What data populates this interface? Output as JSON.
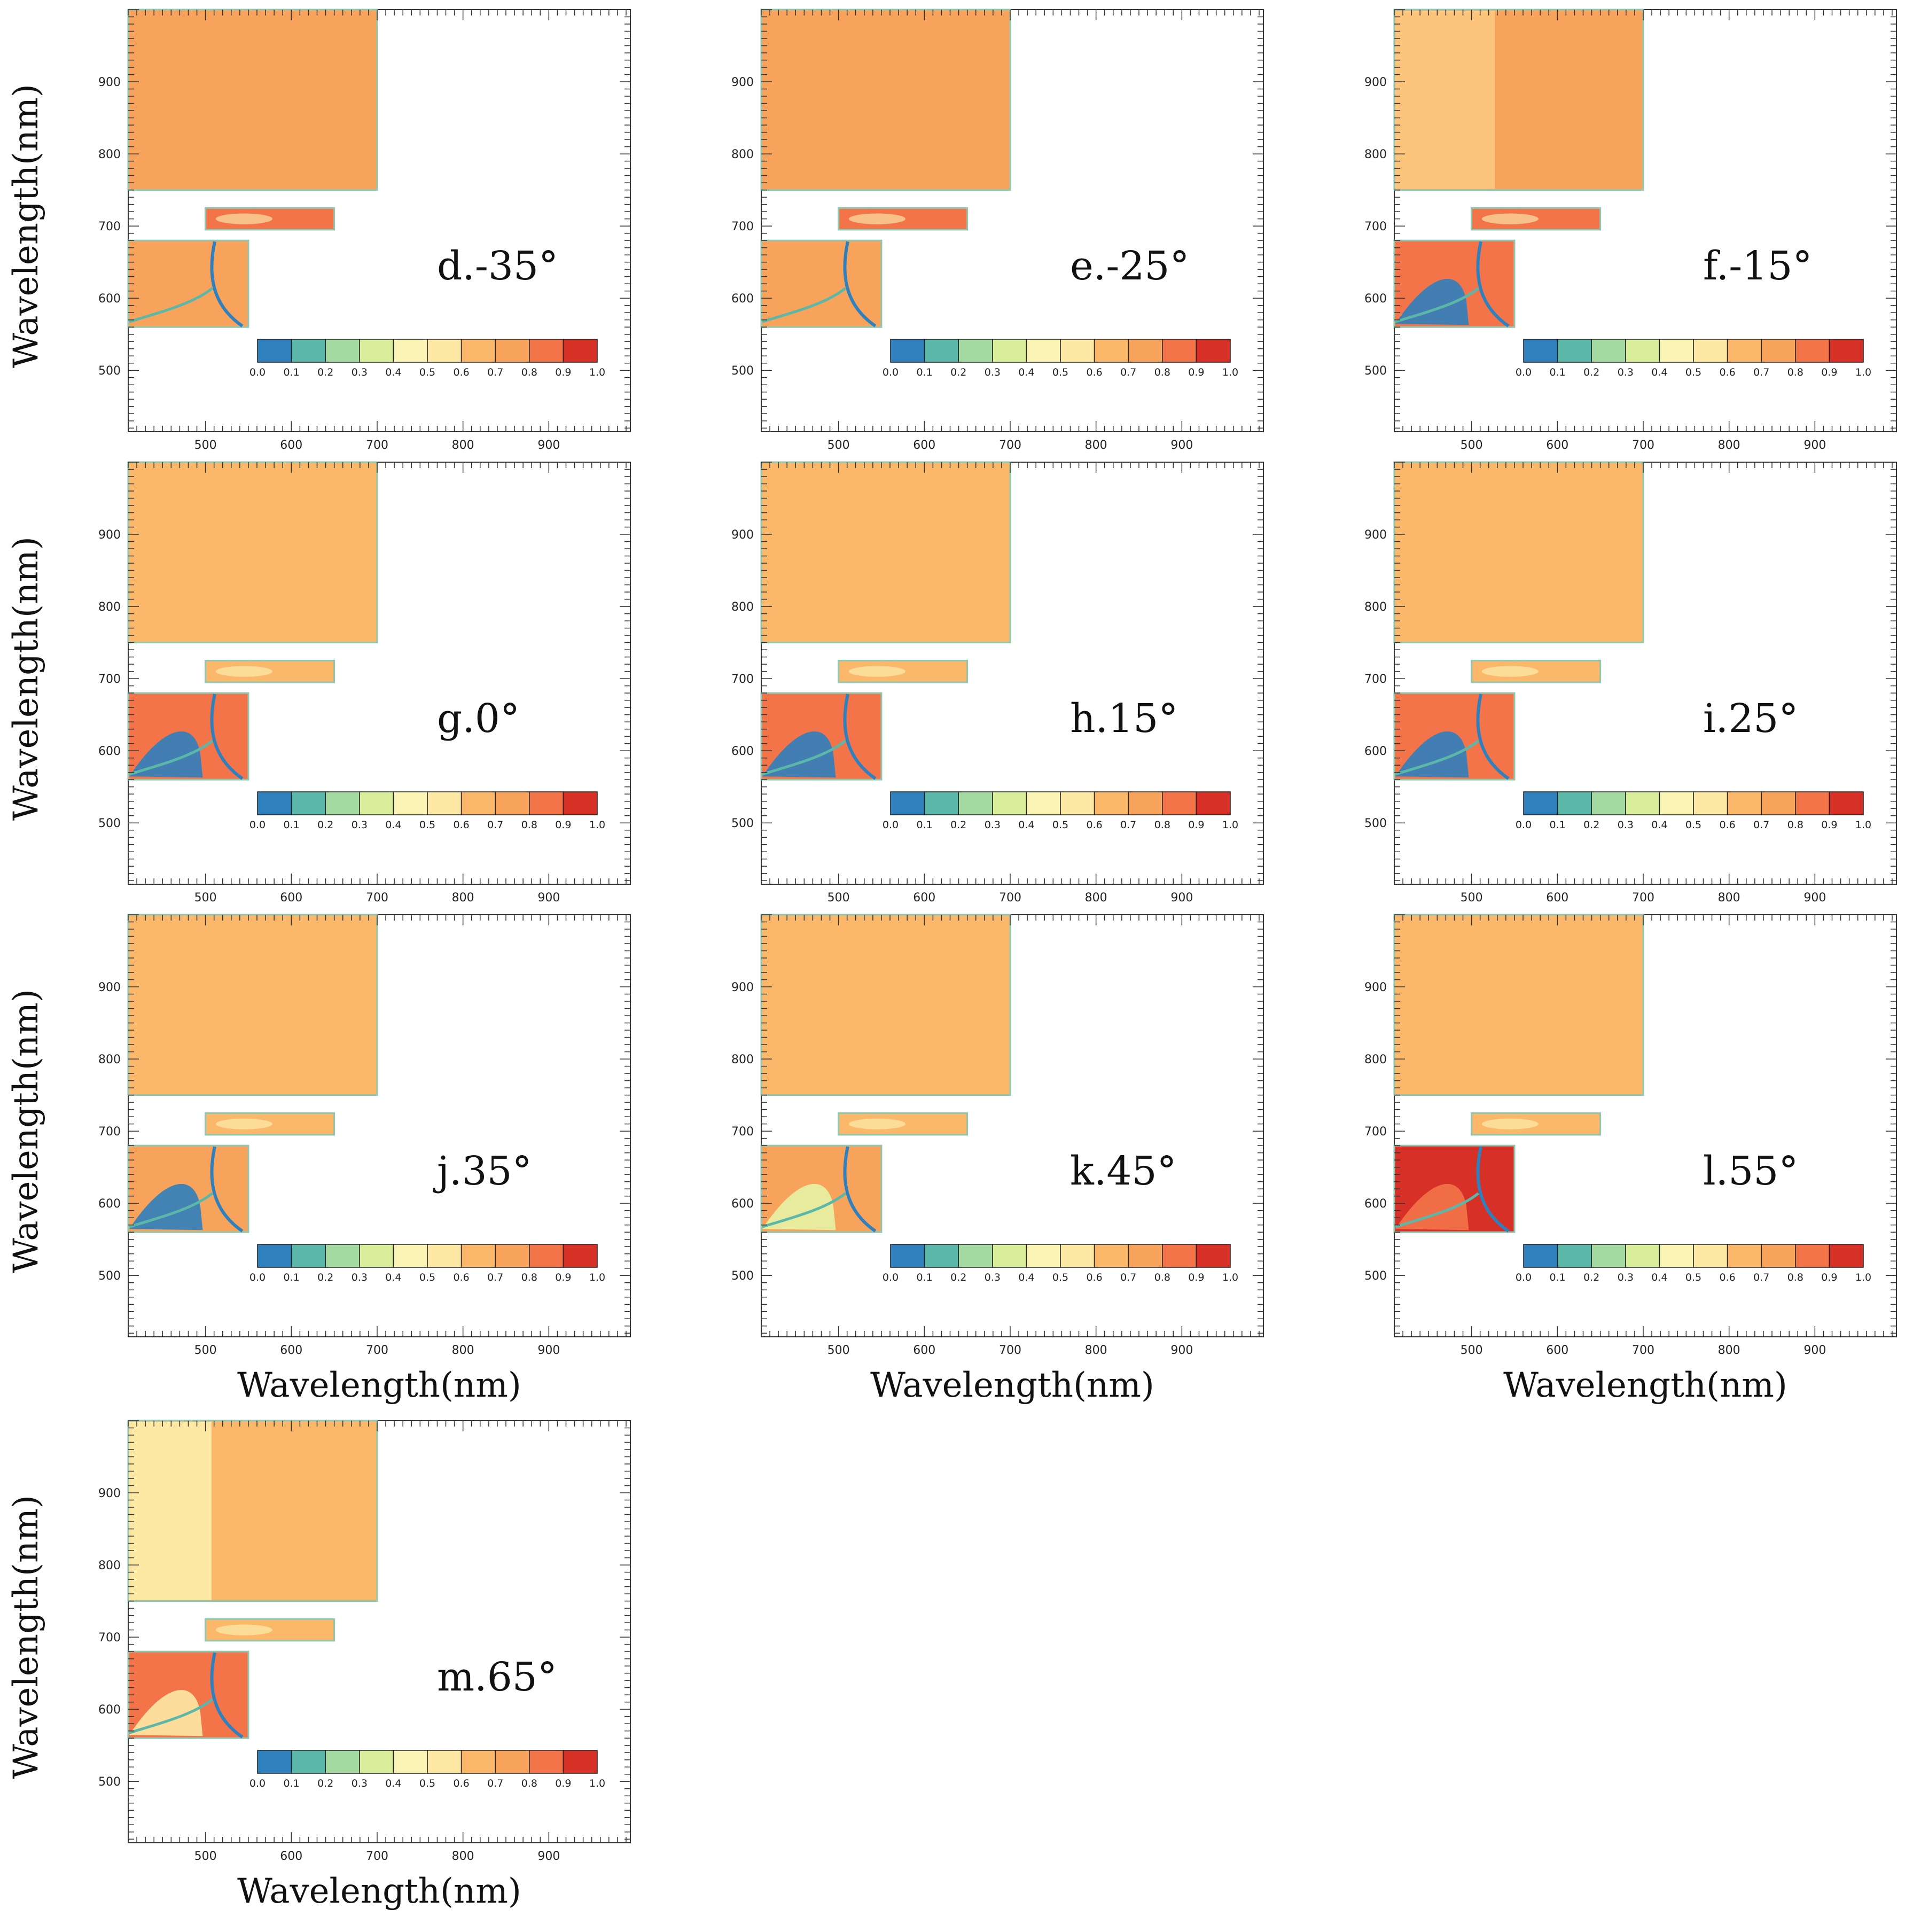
{
  "figure": {
    "axis_title": "Wavelength(nm)",
    "panels": [
      {
        "id": "d",
        "label": "d.-35°",
        "top_left": "#f7a35c",
        "top_right": "#f7a35c",
        "mid_fill": "#f4744a",
        "low_fill": "#f7a35c",
        "low_accent": "#f7a35c"
      },
      {
        "id": "e",
        "label": "e.-25°",
        "top_left": "#f7a35c",
        "top_right": "#f7a35c",
        "mid_fill": "#f4744a",
        "low_fill": "#f7a35c",
        "low_accent": "#f7a35c"
      },
      {
        "id": "f",
        "label": "f.-15°",
        "top_left": "#fdc47c",
        "top_right": "#f7a35c",
        "mid_fill": "#f4744a",
        "low_fill": "#f4744a",
        "low_accent": "#2f80bd"
      },
      {
        "id": "g",
        "label": "g.0°",
        "top_left": "#fbb86b",
        "top_right": "#fbb86b",
        "mid_fill": "#fbb86b",
        "low_fill": "#f4744a",
        "low_accent": "#2f80bd"
      },
      {
        "id": "h",
        "label": "h.15°",
        "top_left": "#fbb86b",
        "top_right": "#fbb86b",
        "mid_fill": "#fbb86b",
        "low_fill": "#f4744a",
        "low_accent": "#2f80bd"
      },
      {
        "id": "i",
        "label": "i.25°",
        "top_left": "#fbb86b",
        "top_right": "#fbb86b",
        "mid_fill": "#fbb86b",
        "low_fill": "#f4744a",
        "low_accent": "#2f80bd"
      },
      {
        "id": "j",
        "label": "j.35°",
        "top_left": "#fbb86b",
        "top_right": "#fbb86b",
        "mid_fill": "#fbb86b",
        "low_fill": "#f7a35c",
        "low_accent": "#2f80bd"
      },
      {
        "id": "k",
        "label": "k.45°",
        "top_left": "#fbb86b",
        "top_right": "#fbb86b",
        "mid_fill": "#fbb86b",
        "low_fill": "#f7a35c",
        "low_accent": "#e6f3a5"
      },
      {
        "id": "l",
        "label": "l.55°",
        "top_left": "#fbb86b",
        "top_right": "#fbb86b",
        "mid_fill": "#fbb86b",
        "low_fill": "#d73027",
        "low_accent": "#f4744a"
      },
      {
        "id": "m",
        "label": "m.65°",
        "top_left": "#fde9a4",
        "top_right": "#fbb86b",
        "mid_fill": "#fbb86b",
        "low_fill": "#f4744a",
        "low_accent": "#fde9a4"
      }
    ]
  },
  "chart_data": {
    "type": "heatmap",
    "title": "",
    "xlabel": "Wavelength(nm)",
    "ylabel": "Wavelength(nm)",
    "xlim": [
      410,
      995
    ],
    "ylim": [
      415,
      1000
    ],
    "x_ticks": [
      "500",
      "600",
      "700",
      "800",
      "900"
    ],
    "y_ticks": [
      "500",
      "600",
      "700",
      "800",
      "900"
    ],
    "x_tick_values": [
      500,
      600,
      700,
      800,
      900
    ],
    "y_tick_values": [
      500,
      600,
      700,
      800,
      900
    ],
    "colorbar": {
      "ticks": [
        "0.0",
        "0.1",
        "0.2",
        "0.3",
        "0.4",
        "0.5",
        "0.6",
        "0.7",
        "0.8",
        "0.9",
        "1.0"
      ],
      "colors": [
        "#2f80bd",
        "#5bb8a8",
        "#a4d9a1",
        "#d9ee9b",
        "#fbf5b5",
        "#fde9a4",
        "#fbb86b",
        "#f7a35c",
        "#f4744a",
        "#d73027"
      ]
    },
    "regions": {
      "top": {
        "x": [
          410,
          700
        ],
        "y": [
          750,
          1000
        ]
      },
      "mid": {
        "x": [
          500,
          650
        ],
        "y": [
          695,
          725
        ]
      },
      "low": {
        "x": [
          410,
          550
        ],
        "y": [
          560,
          680
        ]
      }
    },
    "panel_labels": [
      "d.-35°",
      "e.-25°",
      "f.-15°",
      "g.0°",
      "h.15°",
      "i.25°",
      "j.35°",
      "k.45°",
      "l.55°",
      "m.65°"
    ]
  }
}
